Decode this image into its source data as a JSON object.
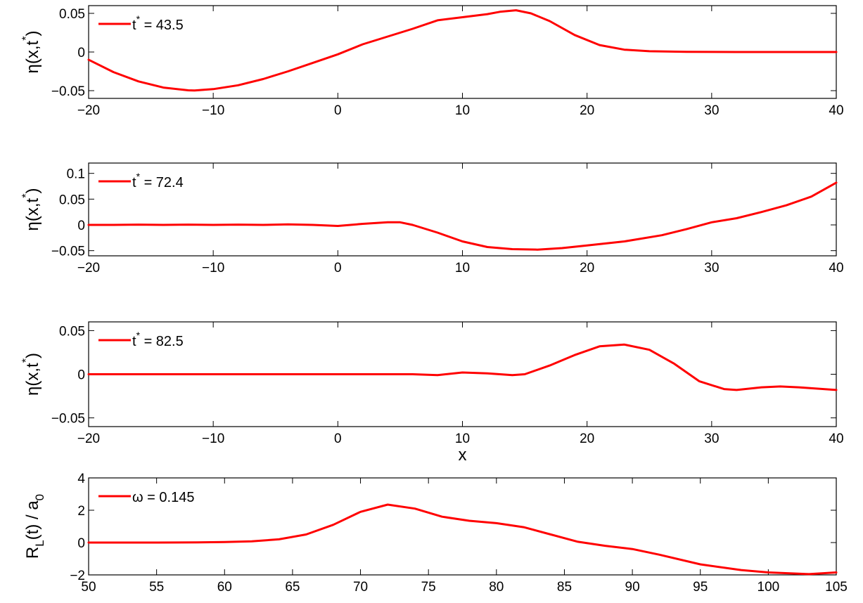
{
  "chart_data": [
    {
      "type": "line",
      "xlim": [
        -20,
        40
      ],
      "ylim": [
        -0.06,
        0.06
      ],
      "xticks": [
        -20,
        -10,
        0,
        10,
        20,
        30,
        40
      ],
      "xtick_labels": [
        "−20",
        "−10",
        "0",
        "10",
        "20",
        "30",
        "40"
      ],
      "yticks": [
        -0.05,
        0,
        0.05
      ],
      "ytick_labels": [
        "−0.05",
        "0",
        "0.05"
      ],
      "ylabel": {
        "main": "η(x,t",
        "sup": "*",
        "close": ")"
      },
      "xlabel": "",
      "legend": {
        "position": "top-left",
        "entries": [
          {
            "var": "t",
            "sup": "*",
            "rest": " = 43.5"
          }
        ]
      },
      "color": "#ff0000",
      "series": [
        {
          "x": [
            -20,
            -18,
            -16,
            -14,
            -12,
            -11.5,
            -10,
            -8,
            -6,
            -4,
            -2,
            0,
            2,
            4,
            6,
            8,
            10,
            12,
            13,
            14.3,
            15.5,
            17,
            19,
            21,
            23,
            25,
            28,
            32,
            40
          ],
          "y": [
            -0.01,
            -0.026,
            -0.038,
            -0.046,
            -0.0495,
            -0.0498,
            -0.048,
            -0.043,
            -0.035,
            -0.025,
            -0.014,
            -0.003,
            0.01,
            0.02,
            0.03,
            0.041,
            0.045,
            0.049,
            0.052,
            0.054,
            0.05,
            0.04,
            0.022,
            0.009,
            0.003,
            0.001,
            0.0002,
            0,
            0
          ]
        }
      ]
    },
    {
      "type": "line",
      "xlim": [
        -20,
        40
      ],
      "ylim": [
        -0.06,
        0.12
      ],
      "xticks": [
        -20,
        -10,
        0,
        10,
        20,
        30,
        40
      ],
      "xtick_labels": [
        "−20",
        "−10",
        "0",
        "10",
        "20",
        "30",
        "40"
      ],
      "yticks": [
        -0.05,
        0,
        0.05,
        0.1
      ],
      "ytick_labels": [
        "−0.05",
        "0",
        "0.05",
        "0.1"
      ],
      "ylabel": {
        "main": "η(x,t",
        "sup": "*",
        "close": ")"
      },
      "xlabel": "",
      "legend": {
        "position": "top-left",
        "entries": [
          {
            "var": "t",
            "sup": "*",
            "rest": " = 72.4"
          }
        ]
      },
      "color": "#ff0000",
      "series": [
        {
          "x": [
            -20,
            -18,
            -16,
            -14,
            -12,
            -10,
            -8,
            -6,
            -4,
            -2,
            0,
            2,
            4,
            5,
            6,
            8,
            10,
            12,
            14,
            16,
            18,
            20,
            23,
            26,
            28,
            30,
            32,
            34,
            36,
            38,
            40
          ],
          "y": [
            0,
            0,
            0.0005,
            0,
            0.0005,
            0,
            0.0005,
            0,
            0.001,
            0,
            -0.002,
            0.002,
            0.005,
            0.005,
            0,
            -0.015,
            -0.032,
            -0.043,
            -0.047,
            -0.048,
            -0.045,
            -0.04,
            -0.032,
            -0.02,
            -0.008,
            0.005,
            0.013,
            0.025,
            0.038,
            0.055,
            0.082
          ]
        }
      ]
    },
    {
      "type": "line",
      "xlim": [
        -20,
        40
      ],
      "ylim": [
        -0.06,
        0.06
      ],
      "xticks": [
        -20,
        -10,
        0,
        10,
        20,
        30,
        40
      ],
      "xtick_labels": [
        "−20",
        "−10",
        "0",
        "10",
        "20",
        "30",
        "40"
      ],
      "yticks": [
        -0.05,
        0,
        0.05
      ],
      "ytick_labels": [
        "−0.05",
        "0",
        "0.05"
      ],
      "ylabel": {
        "main": "η(x,t",
        "sup": "*",
        "close": ")"
      },
      "xlabel": "x",
      "legend": {
        "position": "top-left",
        "entries": [
          {
            "var": "t",
            "sup": "*",
            "rest": " = 82.5"
          }
        ]
      },
      "color": "#ff0000",
      "series": [
        {
          "x": [
            -20,
            -18,
            -16,
            -14,
            -12,
            -10,
            -8,
            -6,
            -4,
            -2,
            0,
            2,
            4,
            6,
            8,
            10,
            12,
            14,
            15,
            17,
            19,
            21,
            23,
            25,
            27,
            29,
            31,
            32,
            34,
            35.5,
            37,
            40
          ],
          "y": [
            0,
            0,
            0,
            0,
            0,
            0,
            0,
            0,
            0,
            0,
            0,
            0,
            0,
            0,
            -0.001,
            0.002,
            0.001,
            -0.001,
            0,
            0.01,
            0.022,
            0.032,
            0.034,
            0.028,
            0.012,
            -0.008,
            -0.017,
            -0.018,
            -0.015,
            -0.014,
            -0.015,
            -0.018
          ]
        }
      ]
    },
    {
      "type": "line",
      "xlim": [
        50,
        105
      ],
      "ylim": [
        -2,
        4
      ],
      "xticks": [
        50,
        55,
        60,
        65,
        70,
        75,
        80,
        85,
        90,
        95,
        100,
        105
      ],
      "xtick_labels": [
        "50",
        "55",
        "60",
        "65",
        "70",
        "75",
        "80",
        "85",
        "90",
        "95",
        "100",
        "105"
      ],
      "yticks": [
        -2,
        0,
        2,
        4
      ],
      "ytick_labels": [
        "−2",
        "0",
        "2",
        "4"
      ],
      "ylabel": {
        "main": "R",
        "sub1": "L",
        "mid": "(t) / a",
        "sub2": "0"
      },
      "xlabel": "",
      "legend": {
        "position": "top-left",
        "entries": [
          {
            "var": "ω",
            "sup": "",
            "rest": " = 0.145"
          }
        ]
      },
      "color": "#ff0000",
      "series": [
        {
          "x": [
            50,
            55,
            58,
            60,
            62,
            64,
            66,
            68,
            70,
            72,
            74,
            76,
            78,
            80,
            82,
            84,
            86,
            88,
            90,
            92,
            95,
            98,
            100,
            103,
            105
          ],
          "y": [
            0,
            0,
            0.01,
            0.03,
            0.08,
            0.2,
            0.5,
            1.1,
            1.9,
            2.35,
            2.1,
            1.6,
            1.35,
            1.2,
            0.95,
            0.5,
            0.05,
            -0.2,
            -0.4,
            -0.75,
            -1.35,
            -1.7,
            -1.85,
            -1.95,
            -1.85
          ]
        }
      ]
    }
  ]
}
